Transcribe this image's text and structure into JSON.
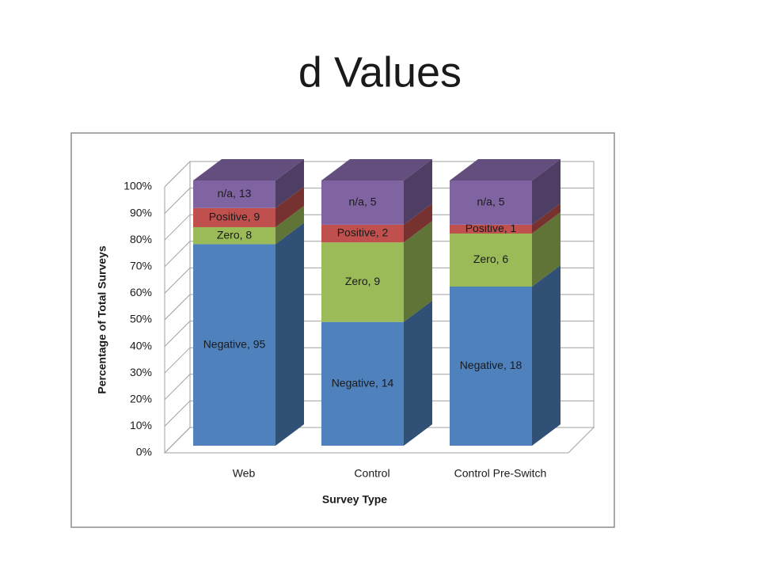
{
  "chart_data": {
    "type": "bar",
    "stacking": "percent",
    "title": "d Values",
    "x_label": "Survey Type",
    "y_label": "Percentage of Total Surveys",
    "categories": [
      "Web",
      "Control",
      "Control Pre-Switch"
    ],
    "series": [
      {
        "name": "Negative",
        "color": "#4f81bd",
        "values": [
          95,
          14,
          18
        ],
        "value_labels": [
          "Negative, 95",
          "Negative, 14",
          "Negative, 18"
        ]
      },
      {
        "name": "Zero",
        "color": "#9bbb59",
        "values": [
          8,
          9,
          6
        ],
        "value_labels": [
          "Zero, 8",
          "Zero, 9",
          "Zero, 6"
        ]
      },
      {
        "name": "Positive",
        "color": "#c0504d",
        "values": [
          9,
          2,
          1
        ],
        "value_labels": [
          "Positive, 9",
          "Positive, 2",
          "Positive, 1"
        ]
      },
      {
        "name": "n/a",
        "color": "#8064a2",
        "values": [
          13,
          5,
          5
        ],
        "value_labels": [
          "n/a, 13",
          "n/a, 5",
          "n/a, 5"
        ]
      }
    ],
    "ylim": [
      0,
      100
    ],
    "yticks": [
      {
        "value": 0,
        "label": "0%"
      },
      {
        "value": 10,
        "label": "10%"
      },
      {
        "value": 20,
        "label": "20%"
      },
      {
        "value": 30,
        "label": "30%"
      },
      {
        "value": 40,
        "label": "40%"
      },
      {
        "value": 50,
        "label": "50%"
      },
      {
        "value": 60,
        "label": "60%"
      },
      {
        "value": 70,
        "label": "70%"
      },
      {
        "value": 80,
        "label": "80%"
      },
      {
        "value": 90,
        "label": "90%"
      },
      {
        "value": 100,
        "label": "100%"
      }
    ],
    "grid": true
  }
}
